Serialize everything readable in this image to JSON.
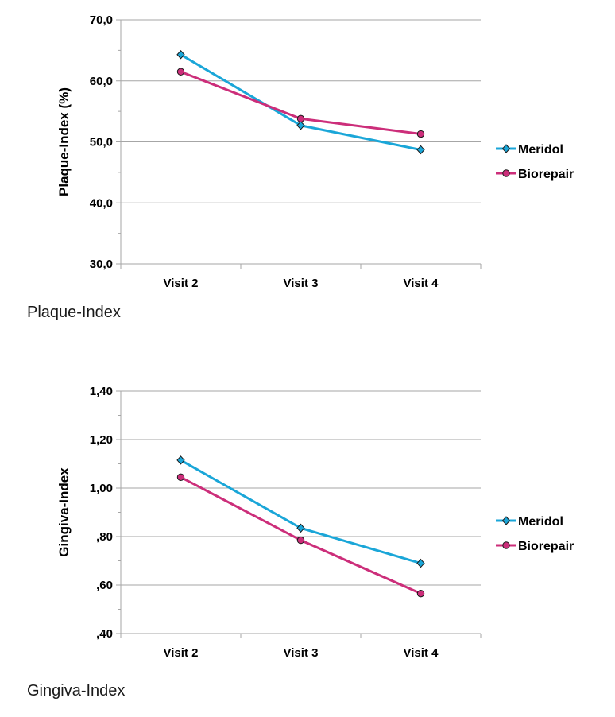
{
  "chart_data": [
    {
      "type": "line",
      "categories": [
        "Visit 2",
        "Visit 3",
        "Visit 4"
      ],
      "series": [
        {
          "name": "Meridol",
          "values": [
            64.3,
            52.7,
            48.7
          ],
          "color": "#1aa6d8",
          "marker": "diamond"
        },
        {
          "name": "Biorepair",
          "values": [
            61.5,
            53.8,
            51.3
          ],
          "color": "#cc2e7a",
          "marker": "circle"
        }
      ],
      "ylabel": "Plaque-Index (%)",
      "ylim": [
        30,
        70
      ],
      "yticks": [
        "30,0",
        "40,0",
        "50,0",
        "60,0",
        "70,0"
      ],
      "ytick_values": [
        30,
        40,
        50,
        60,
        70
      ],
      "grid": true,
      "legend": "right",
      "caption": "Plaque-Index"
    },
    {
      "type": "line",
      "categories": [
        "Visit 2",
        "Visit 3",
        "Visit 4"
      ],
      "series": [
        {
          "name": "Meridol",
          "values": [
            1.115,
            0.835,
            0.69
          ],
          "color": "#1aa6d8",
          "marker": "diamond"
        },
        {
          "name": "Biorepair",
          "values": [
            1.045,
            0.785,
            0.565
          ],
          "color": "#cc2e7a",
          "marker": "circle"
        }
      ],
      "ylabel": "Gingiva-Index",
      "ylim": [
        0.4,
        1.4
      ],
      "yticks": [
        ",40",
        ",60",
        ",80",
        "1,00",
        "1,20",
        "1,40"
      ],
      "ytick_values": [
        0.4,
        0.6,
        0.8,
        1.0,
        1.2,
        1.4
      ],
      "grid": true,
      "legend": "right",
      "caption": "Gingiva-Index"
    }
  ]
}
